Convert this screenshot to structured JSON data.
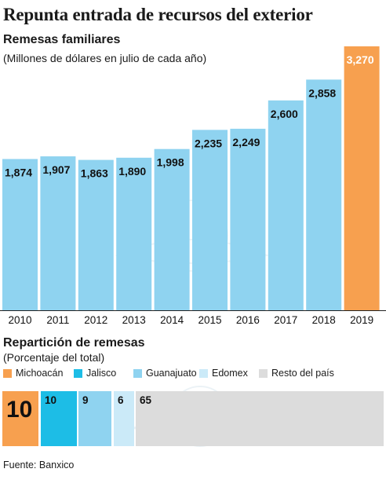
{
  "header": {
    "title": "Repunta entrada de recursos del exterior",
    "subtitle": "Remesas familiares",
    "note": "(Millones de dólares en julio de cada año)"
  },
  "section2": {
    "title": "Repartición de remesas",
    "note": "(Porcentaje del total)"
  },
  "legend": [
    {
      "label": "Michoacán",
      "color": "#f7a04f"
    },
    {
      "label": "Jalisco",
      "color": "#1dbde6"
    },
    {
      "label": "Guanajuato",
      "color": "#8fd3f0"
    },
    {
      "label": "Edomex",
      "color": "#cbeaf8"
    },
    {
      "label": "Resto del país",
      "color": "#dcdcdc"
    }
  ],
  "source": "Fuente: Banxico",
  "chart_data": [
    {
      "type": "bar",
      "title": "Remesas familiares",
      "categories": [
        "2010",
        "2011",
        "2012",
        "2013",
        "2014",
        "2015",
        "2016",
        "2017",
        "2018",
        "2019"
      ],
      "values": [
        1874,
        1907,
        1863,
        1890,
        1998,
        2235,
        2249,
        2600,
        2858,
        3270
      ],
      "labels": [
        "1,874",
        "1,907",
        "1,863",
        "1,890",
        "1,998",
        "2,235",
        "2,249",
        "2,600",
        "2,858",
        "3,270"
      ],
      "colors": [
        "#8fd3f0",
        "#8fd3f0",
        "#8fd3f0",
        "#8fd3f0",
        "#8fd3f0",
        "#8fd3f0",
        "#8fd3f0",
        "#8fd3f0",
        "#8fd3f0",
        "#f7a04f"
      ],
      "ylim": [
        0,
        3270
      ]
    },
    {
      "type": "bar",
      "title": "Repartición de remesas",
      "categories": [
        "Michoacán",
        "Jalisco",
        "Guanajuato",
        "Edomex",
        "Resto del país"
      ],
      "values": [
        10,
        10,
        9,
        6,
        65
      ],
      "labels": [
        "10",
        "10",
        "9",
        "6",
        "65"
      ],
      "colors": [
        "#f7a04f",
        "#1dbde6",
        "#8fd3f0",
        "#cbeaf8",
        "#dcdcdc"
      ]
    }
  ]
}
